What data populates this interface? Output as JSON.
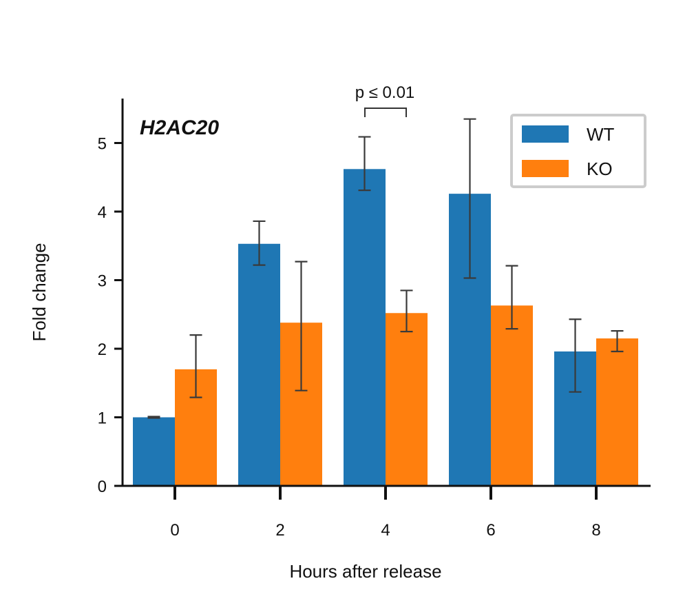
{
  "chart_data": {
    "type": "bar",
    "title": "H2AC20",
    "xlabel": "Hours after release",
    "ylabel": "Fold change",
    "categories": [
      "0",
      "2",
      "4",
      "6",
      "8"
    ],
    "yticks": [
      "0",
      "1",
      "2",
      "3",
      "4",
      "5"
    ],
    "ylim": [
      0,
      5.65
    ],
    "grid": false,
    "legend_position": "top-right",
    "series": [
      {
        "name": "WT",
        "color": "#1f77b4",
        "values": [
          1.0,
          3.53,
          4.62,
          4.26,
          1.96
        ],
        "err_low": [
          0.99,
          3.22,
          4.31,
          3.03,
          1.37
        ],
        "err_high": [
          1.01,
          3.86,
          5.09,
          5.35,
          2.43
        ]
      },
      {
        "name": "KO",
        "color": "#ff7f0e",
        "values": [
          1.7,
          2.38,
          2.52,
          2.63,
          2.15
        ],
        "err_low": [
          1.29,
          1.39,
          2.25,
          2.29,
          1.96
        ],
        "err_high": [
          2.2,
          3.27,
          2.85,
          3.21,
          2.26
        ]
      }
    ],
    "annotations": [
      {
        "text": "p ≤ 0.01",
        "category": "4",
        "bracket_y": 5.5
      }
    ]
  }
}
